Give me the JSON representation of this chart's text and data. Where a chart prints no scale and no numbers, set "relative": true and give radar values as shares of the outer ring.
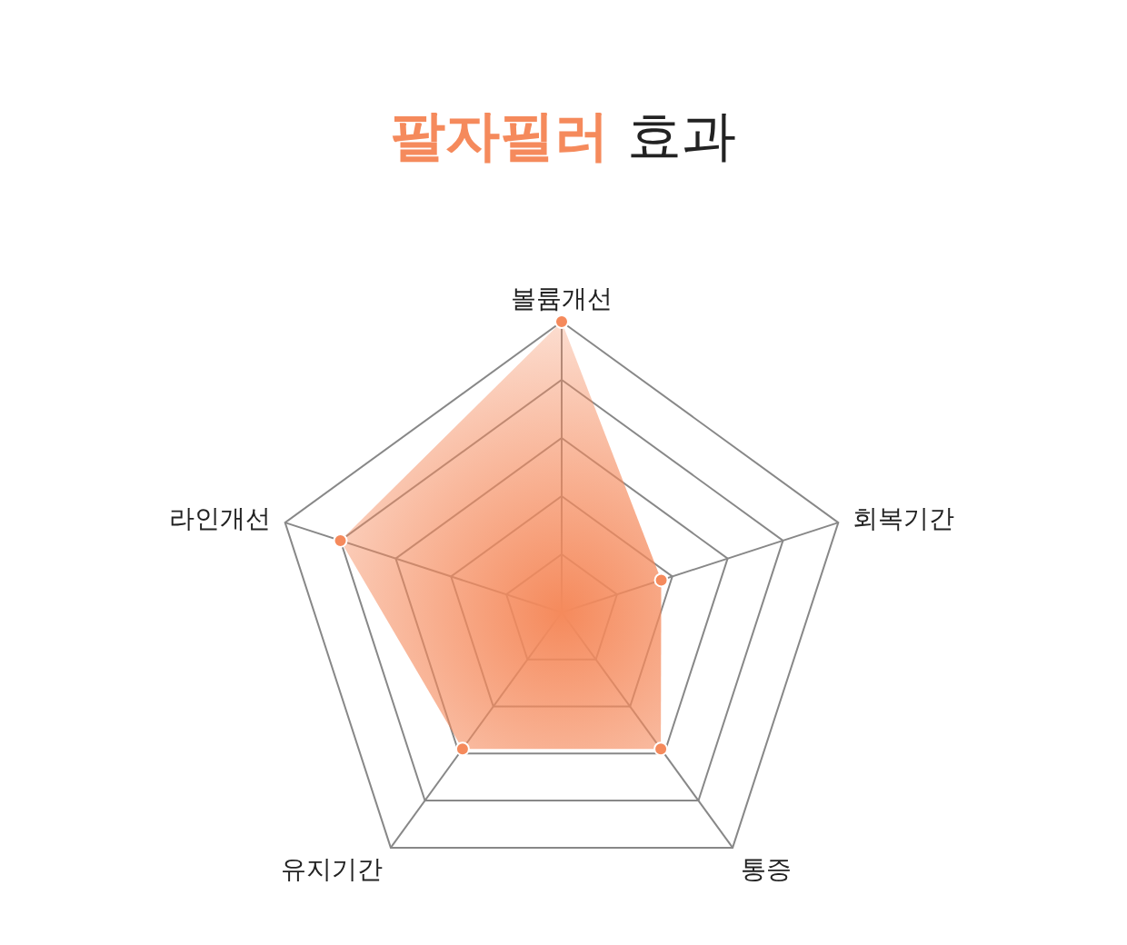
{
  "chart_data": {
    "type": "radar",
    "title": "팔자필러 효과",
    "relative": true,
    "grid": true,
    "marker": "circle",
    "categories": [
      "볼륨개선",
      "회복기간",
      "통증",
      "유지기간",
      "라인개선"
    ],
    "series": [
      {
        "color": "#f58a5c",
        "values": [
          1,
          0.36,
          0.58,
          0.58,
          0.8
        ]
      }
    ]
  }
}
